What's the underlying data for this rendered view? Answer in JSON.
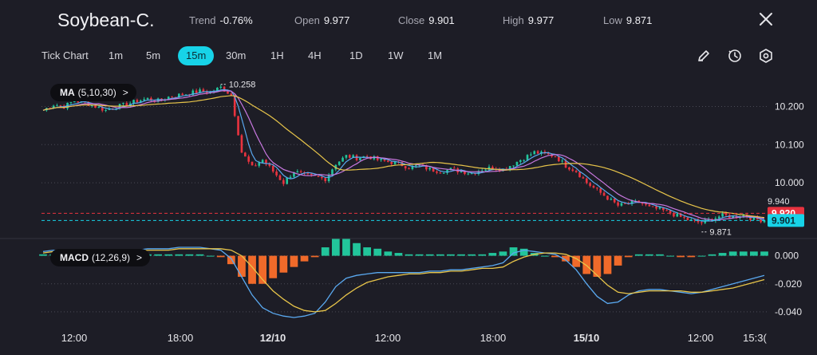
{
  "header": {
    "title": "Soybean-C.",
    "trend_label": "Trend",
    "trend_value": "-0.76%",
    "open_label": "Open",
    "open_value": "9.977",
    "close_label": "Close",
    "close_value": "9.901",
    "high_label": "High",
    "high_value": "9.977",
    "low_label": "Low",
    "low_value": "9.871"
  },
  "timeframes": [
    {
      "label": "Tick Chart",
      "active": false
    },
    {
      "label": "1m",
      "active": false
    },
    {
      "label": "5m",
      "active": false
    },
    {
      "label": "15m",
      "active": true
    },
    {
      "label": "30m",
      "active": false
    },
    {
      "label": "1H",
      "active": false
    },
    {
      "label": "4H",
      "active": false
    },
    {
      "label": "1D",
      "active": false
    },
    {
      "label": "1W",
      "active": false
    },
    {
      "label": "1M",
      "active": false
    }
  ],
  "toolbar_icons": [
    "pencil-icon",
    "clock-icon",
    "settings-icon"
  ],
  "colors": {
    "up": "#22c59b",
    "down": "#e8333f",
    "ma5": "#5aa9f0",
    "ma10": "#c878e0",
    "ma30": "#e8c54a",
    "macd_line": "#5aa9f0",
    "signal_line": "#e8c54a",
    "hist_up": "#22c59b",
    "hist_down": "#f06a2a",
    "accent": "#17d3e8"
  },
  "ma_indicator": {
    "name": "MA",
    "params": "(5,10,30)",
    "arrow": ">"
  },
  "macd_indicator": {
    "name": "MACD",
    "params": "(12,26,9)",
    "arrow": ">"
  },
  "chart_data": [
    {
      "type": "candlestick",
      "title": "Soybean-C.",
      "interval": "15m",
      "ylim": [
        9.86,
        10.27
      ],
      "y_ticks": [
        "10.200",
        "10.100",
        "10.000"
      ],
      "x_ticks": [
        "12:00",
        "18:00",
        "12/10",
        "12:00",
        "18:00",
        "15/10",
        "12:00",
        "15:3("
      ],
      "x_ticks_bold": [
        "12/10",
        "15/10"
      ],
      "high_annotation": "10.258",
      "low_annotation": "9.871",
      "price_tags": [
        {
          "label": "9.940",
          "kind": "plain"
        },
        {
          "label": "9.920",
          "kind": "red"
        },
        {
          "label": "9.901",
          "kind": "cyan"
        }
      ],
      "price_series": [
        10.19,
        10.205,
        10.2,
        10.215,
        10.21,
        10.2,
        10.19,
        10.2,
        10.205,
        10.215,
        10.22,
        10.215,
        10.225,
        10.23,
        10.235,
        10.24,
        10.238,
        10.25,
        10.23,
        10.08,
        10.04,
        10.06,
        10.03,
        10.0,
        10.03,
        10.02,
        10.015,
        10.01,
        10.05,
        10.07,
        10.065,
        10.07,
        10.06,
        10.055,
        10.05,
        10.04,
        10.045,
        10.035,
        10.03,
        10.035,
        10.03,
        10.025,
        10.035,
        10.04,
        10.035,
        10.05,
        10.065,
        10.08,
        10.075,
        10.07,
        10.045,
        10.03,
        10.0,
        9.98,
        9.96,
        9.94,
        9.945,
        9.95,
        9.935,
        9.93,
        9.92,
        9.91,
        9.9,
        9.895,
        9.905,
        9.915,
        9.91,
        9.915,
        9.905,
        9.901
      ]
    },
    {
      "type": "macd",
      "title": "MACD (12,26,9)",
      "ylim": [
        -0.048,
        0.01
      ],
      "y_ticks": [
        "0.000",
        "-0.020",
        "-0.040"
      ],
      "macd": [
        0.003,
        0.004,
        0.003,
        0.004,
        0.004,
        0.003,
        0.002,
        0.003,
        0.003,
        0.004,
        0.005,
        0.005,
        0.005,
        0.006,
        0.006,
        0.006,
        0.005,
        0.004,
        -0.002,
        -0.015,
        -0.028,
        -0.037,
        -0.041,
        -0.043,
        -0.044,
        -0.043,
        -0.041,
        -0.033,
        -0.022,
        -0.016,
        -0.014,
        -0.013,
        -0.012,
        -0.012,
        -0.012,
        -0.012,
        -0.012,
        -0.011,
        -0.011,
        -0.01,
        -0.01,
        -0.009,
        -0.008,
        -0.007,
        -0.005,
        0.002,
        0.004,
        0.003,
        0.002,
        0.001,
        -0.003,
        -0.01,
        -0.02,
        -0.029,
        -0.034,
        -0.033,
        -0.028,
        -0.025,
        -0.024,
        -0.024,
        -0.025,
        -0.026,
        -0.027,
        -0.026,
        -0.024,
        -0.022,
        -0.02,
        -0.018,
        -0.016,
        -0.014
      ],
      "signal": [
        0.002,
        0.003,
        0.003,
        0.003,
        0.003,
        0.003,
        0.003,
        0.003,
        0.003,
        0.003,
        0.004,
        0.004,
        0.004,
        0.005,
        0.005,
        0.005,
        0.005,
        0.005,
        0.004,
        0.0,
        -0.008,
        -0.017,
        -0.025,
        -0.031,
        -0.036,
        -0.039,
        -0.04,
        -0.039,
        -0.034,
        -0.028,
        -0.023,
        -0.019,
        -0.017,
        -0.015,
        -0.014,
        -0.013,
        -0.013,
        -0.012,
        -0.012,
        -0.011,
        -0.011,
        -0.01,
        -0.009,
        -0.009,
        -0.008,
        -0.004,
        -0.001,
        0.001,
        0.002,
        0.002,
        0.001,
        -0.002,
        -0.007,
        -0.014,
        -0.021,
        -0.026,
        -0.027,
        -0.026,
        -0.025,
        -0.025,
        -0.025,
        -0.025,
        -0.026,
        -0.026,
        -0.025,
        -0.024,
        -0.023,
        -0.021,
        -0.019,
        -0.017
      ]
    }
  ]
}
